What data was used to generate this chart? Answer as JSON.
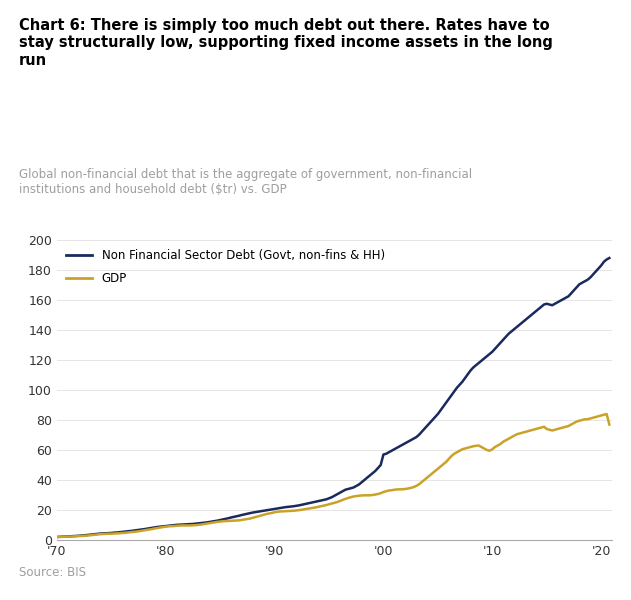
{
  "title_bold": "Chart 6: There is simply too much debt out there. Rates have to\nstay structurally low, supporting fixed income assets in the long\nrun",
  "subtitle": "Global non-financial debt that is the aggregate of government, non-financial\ninstitutions and household debt ($tr) vs. GDP",
  "source": "Source: BIS",
  "background_color": "#ffffff",
  "title_color": "#000000",
  "subtitle_color": "#9e9e9e",
  "separator_color": "#1a3a6e",
  "line1_color": "#1a2a5e",
  "line2_color": "#c9a227",
  "line1_label": "Non Financial Sector Debt (Govt, non-fins & HH)",
  "line2_label": "GDP",
  "xlim": [
    1970,
    2021
  ],
  "ylim": [
    0,
    200
  ],
  "xticks": [
    1970,
    1980,
    1990,
    2000,
    2010,
    2020
  ],
  "xtick_labels": [
    "'70",
    "'80",
    "'90",
    "'00",
    "'10",
    "'20"
  ],
  "yticks": [
    0,
    20,
    40,
    60,
    80,
    100,
    120,
    140,
    160,
    180,
    200
  ],
  "debt_x": [
    1970.0,
    1970.25,
    1970.5,
    1970.75,
    1971.0,
    1971.25,
    1971.5,
    1971.75,
    1972.0,
    1972.25,
    1972.5,
    1972.75,
    1973.0,
    1973.25,
    1973.5,
    1973.75,
    1974.0,
    1974.25,
    1974.5,
    1974.75,
    1975.0,
    1975.25,
    1975.5,
    1975.75,
    1976.0,
    1976.25,
    1976.5,
    1976.75,
    1977.0,
    1977.25,
    1977.5,
    1977.75,
    1978.0,
    1978.25,
    1978.5,
    1978.75,
    1979.0,
    1979.25,
    1979.5,
    1979.75,
    1980.0,
    1980.25,
    1980.5,
    1980.75,
    1981.0,
    1981.25,
    1981.5,
    1981.75,
    1982.0,
    1982.25,
    1982.5,
    1982.75,
    1983.0,
    1983.25,
    1983.5,
    1983.75,
    1984.0,
    1984.25,
    1984.5,
    1984.75,
    1985.0,
    1985.25,
    1985.5,
    1985.75,
    1986.0,
    1986.25,
    1986.5,
    1986.75,
    1987.0,
    1987.25,
    1987.5,
    1987.75,
    1988.0,
    1988.25,
    1988.5,
    1988.75,
    1989.0,
    1989.25,
    1989.5,
    1989.75,
    1990.0,
    1990.25,
    1990.5,
    1990.75,
    1991.0,
    1991.25,
    1991.5,
    1991.75,
    1992.0,
    1992.25,
    1992.5,
    1992.75,
    1993.0,
    1993.25,
    1993.5,
    1993.75,
    1994.0,
    1994.25,
    1994.5,
    1994.75,
    1995.0,
    1995.25,
    1995.5,
    1995.75,
    1996.0,
    1996.25,
    1996.5,
    1996.75,
    1997.0,
    1997.25,
    1997.5,
    1997.75,
    1998.0,
    1998.25,
    1998.5,
    1998.75,
    1999.0,
    1999.25,
    1999.5,
    1999.75,
    2000.0,
    2000.25,
    2000.5,
    2000.75,
    2001.0,
    2001.25,
    2001.5,
    2001.75,
    2002.0,
    2002.25,
    2002.5,
    2002.75,
    2003.0,
    2003.25,
    2003.5,
    2003.75,
    2004.0,
    2004.25,
    2004.5,
    2004.75,
    2005.0,
    2005.25,
    2005.5,
    2005.75,
    2006.0,
    2006.25,
    2006.5,
    2006.75,
    2007.0,
    2007.25,
    2007.5,
    2007.75,
    2008.0,
    2008.25,
    2008.5,
    2008.75,
    2009.0,
    2009.25,
    2009.5,
    2009.75,
    2010.0,
    2010.25,
    2010.5,
    2010.75,
    2011.0,
    2011.25,
    2011.5,
    2011.75,
    2012.0,
    2012.25,
    2012.5,
    2012.75,
    2013.0,
    2013.25,
    2013.5,
    2013.75,
    2014.0,
    2014.25,
    2014.5,
    2014.75,
    2015.0,
    2015.25,
    2015.5,
    2015.75,
    2016.0,
    2016.25,
    2016.5,
    2016.75,
    2017.0,
    2017.25,
    2017.5,
    2017.75,
    2018.0,
    2018.25,
    2018.5,
    2018.75,
    2019.0,
    2019.25,
    2019.5,
    2019.75,
    2020.0,
    2020.25,
    2020.5,
    2020.75
  ],
  "debt_y": [
    2.0,
    2.1,
    2.2,
    2.3,
    2.4,
    2.5,
    2.6,
    2.7,
    2.8,
    3.0,
    3.1,
    3.3,
    3.5,
    3.7,
    3.9,
    4.1,
    4.3,
    4.4,
    4.5,
    4.6,
    4.7,
    4.9,
    5.0,
    5.2,
    5.4,
    5.6,
    5.8,
    6.0,
    6.2,
    6.5,
    6.7,
    7.0,
    7.2,
    7.5,
    7.8,
    8.1,
    8.4,
    8.7,
    8.9,
    9.1,
    9.3,
    9.5,
    9.7,
    9.9,
    10.1,
    10.2,
    10.3,
    10.4,
    10.5,
    10.6,
    10.7,
    10.9,
    11.1,
    11.3,
    11.5,
    11.7,
    12.0,
    12.3,
    12.6,
    12.9,
    13.3,
    13.7,
    14.1,
    14.5,
    15.0,
    15.4,
    15.8,
    16.2,
    16.7,
    17.1,
    17.5,
    17.9,
    18.3,
    18.6,
    18.9,
    19.2,
    19.5,
    19.8,
    20.1,
    20.4,
    20.7,
    21.0,
    21.3,
    21.6,
    21.9,
    22.1,
    22.3,
    22.5,
    22.8,
    23.1,
    23.5,
    23.9,
    24.3,
    24.7,
    25.1,
    25.5,
    25.9,
    26.3,
    26.7,
    27.1,
    27.8,
    28.5,
    29.5,
    30.5,
    31.5,
    32.5,
    33.5,
    34.0,
    34.5,
    35.0,
    36.0,
    37.0,
    38.5,
    40.0,
    41.5,
    43.0,
    44.5,
    46.0,
    48.0,
    50.0,
    57.0,
    57.5,
    58.5,
    59.5,
    60.5,
    61.5,
    62.5,
    63.5,
    64.5,
    65.5,
    66.5,
    67.5,
    68.5,
    70.0,
    72.0,
    74.0,
    76.0,
    78.0,
    80.0,
    82.0,
    84.0,
    86.5,
    89.0,
    91.5,
    94.0,
    96.5,
    99.0,
    101.5,
    103.5,
    105.5,
    108.0,
    110.5,
    113.0,
    115.0,
    116.5,
    118.0,
    119.5,
    121.0,
    122.5,
    124.0,
    125.5,
    127.5,
    129.5,
    131.5,
    133.5,
    135.5,
    137.5,
    139.0,
    140.5,
    142.0,
    143.5,
    145.0,
    146.5,
    148.0,
    149.5,
    151.0,
    152.5,
    154.0,
    155.5,
    157.0,
    157.5,
    157.0,
    156.5,
    157.5,
    158.5,
    159.5,
    160.5,
    161.5,
    162.5,
    164.5,
    166.5,
    168.5,
    170.5,
    171.5,
    172.5,
    173.5,
    175.0,
    177.0,
    179.0,
    181.0,
    183.0,
    185.5,
    187.0,
    188.0
  ],
  "gdp_x": [
    1970.0,
    1970.25,
    1970.5,
    1970.75,
    1971.0,
    1971.25,
    1971.5,
    1971.75,
    1972.0,
    1972.25,
    1972.5,
    1972.75,
    1973.0,
    1973.25,
    1973.5,
    1973.75,
    1974.0,
    1974.25,
    1974.5,
    1974.75,
    1975.0,
    1975.25,
    1975.5,
    1975.75,
    1976.0,
    1976.25,
    1976.5,
    1976.75,
    1977.0,
    1977.25,
    1977.5,
    1977.75,
    1978.0,
    1978.25,
    1978.5,
    1978.75,
    1979.0,
    1979.25,
    1979.5,
    1979.75,
    1980.0,
    1980.25,
    1980.5,
    1980.75,
    1981.0,
    1981.25,
    1981.5,
    1981.75,
    1982.0,
    1982.25,
    1982.5,
    1982.75,
    1983.0,
    1983.25,
    1983.5,
    1983.75,
    1984.0,
    1984.25,
    1984.5,
    1984.75,
    1985.0,
    1985.25,
    1985.5,
    1985.75,
    1986.0,
    1986.25,
    1986.5,
    1986.75,
    1987.0,
    1987.25,
    1987.5,
    1987.75,
    1988.0,
    1988.25,
    1988.5,
    1988.75,
    1989.0,
    1989.25,
    1989.5,
    1989.75,
    1990.0,
    1990.25,
    1990.5,
    1990.75,
    1991.0,
    1991.25,
    1991.5,
    1991.75,
    1992.0,
    1992.25,
    1992.5,
    1992.75,
    1993.0,
    1993.25,
    1993.5,
    1993.75,
    1994.0,
    1994.25,
    1994.5,
    1994.75,
    1995.0,
    1995.25,
    1995.5,
    1995.75,
    1996.0,
    1996.25,
    1996.5,
    1996.75,
    1997.0,
    1997.25,
    1997.5,
    1997.75,
    1998.0,
    1998.25,
    1998.5,
    1998.75,
    1999.0,
    1999.25,
    1999.5,
    1999.75,
    2000.0,
    2000.25,
    2000.5,
    2000.75,
    2001.0,
    2001.25,
    2001.5,
    2001.75,
    2002.0,
    2002.25,
    2002.5,
    2002.75,
    2003.0,
    2003.25,
    2003.5,
    2003.75,
    2004.0,
    2004.25,
    2004.5,
    2004.75,
    2005.0,
    2005.25,
    2005.5,
    2005.75,
    2006.0,
    2006.25,
    2006.5,
    2006.75,
    2007.0,
    2007.25,
    2007.5,
    2007.75,
    2008.0,
    2008.25,
    2008.5,
    2008.75,
    2009.0,
    2009.25,
    2009.5,
    2009.75,
    2010.0,
    2010.25,
    2010.5,
    2010.75,
    2011.0,
    2011.25,
    2011.5,
    2011.75,
    2012.0,
    2012.25,
    2012.5,
    2012.75,
    2013.0,
    2013.25,
    2013.5,
    2013.75,
    2014.0,
    2014.25,
    2014.5,
    2014.75,
    2015.0,
    2015.25,
    2015.5,
    2015.75,
    2016.0,
    2016.25,
    2016.5,
    2016.75,
    2017.0,
    2017.25,
    2017.5,
    2017.75,
    2018.0,
    2018.25,
    2018.5,
    2018.75,
    2019.0,
    2019.25,
    2019.5,
    2019.75,
    2020.0,
    2020.25,
    2020.5,
    2020.75
  ],
  "gdp_y": [
    2.0,
    2.1,
    2.1,
    2.2,
    2.3,
    2.3,
    2.4,
    2.5,
    2.6,
    2.7,
    2.8,
    2.9,
    3.1,
    3.3,
    3.5,
    3.7,
    3.9,
    4.0,
    4.1,
    4.2,
    4.2,
    4.3,
    4.4,
    4.5,
    4.7,
    4.8,
    5.0,
    5.2,
    5.4,
    5.6,
    5.8,
    6.1,
    6.4,
    6.7,
    7.0,
    7.3,
    7.7,
    8.0,
    8.3,
    8.6,
    8.9,
    9.1,
    9.2,
    9.3,
    9.5,
    9.6,
    9.7,
    9.7,
    9.7,
    9.7,
    9.8,
    9.9,
    10.1,
    10.3,
    10.6,
    10.9,
    11.2,
    11.5,
    11.8,
    12.1,
    12.3,
    12.5,
    12.6,
    12.7,
    12.8,
    12.9,
    13.0,
    13.1,
    13.4,
    13.7,
    14.0,
    14.3,
    14.8,
    15.3,
    15.8,
    16.3,
    16.8,
    17.3,
    17.7,
    18.0,
    18.5,
    18.8,
    19.0,
    19.1,
    19.2,
    19.3,
    19.4,
    19.5,
    19.7,
    19.9,
    20.2,
    20.5,
    20.8,
    21.1,
    21.4,
    21.7,
    22.1,
    22.5,
    22.9,
    23.3,
    23.8,
    24.3,
    24.8,
    25.3,
    26.0,
    26.7,
    27.4,
    28.0,
    28.5,
    29.0,
    29.3,
    29.5,
    29.7,
    29.8,
    29.8,
    29.8,
    30.0,
    30.3,
    30.7,
    31.2,
    32.0,
    32.5,
    33.0,
    33.2,
    33.5,
    33.7,
    33.8,
    33.8,
    34.0,
    34.3,
    34.7,
    35.2,
    36.0,
    37.0,
    38.5,
    40.0,
    41.5,
    43.0,
    44.5,
    46.0,
    47.5,
    49.0,
    50.5,
    52.0,
    54.0,
    56.0,
    57.5,
    58.5,
    59.5,
    60.5,
    61.0,
    61.5,
    62.0,
    62.5,
    62.8,
    63.0,
    62.0,
    61.0,
    60.0,
    59.5,
    60.5,
    62.0,
    63.0,
    64.0,
    65.5,
    66.5,
    67.5,
    68.5,
    69.5,
    70.5,
    71.0,
    71.5,
    72.0,
    72.5,
    73.0,
    73.5,
    74.0,
    74.5,
    75.0,
    75.5,
    74.0,
    73.5,
    73.0,
    73.5,
    74.0,
    74.5,
    75.0,
    75.5,
    76.0,
    77.0,
    78.0,
    79.0,
    79.5,
    80.0,
    80.5,
    80.5,
    81.0,
    81.5,
    82.0,
    82.5,
    83.0,
    83.5,
    84.0,
    77.0
  ]
}
